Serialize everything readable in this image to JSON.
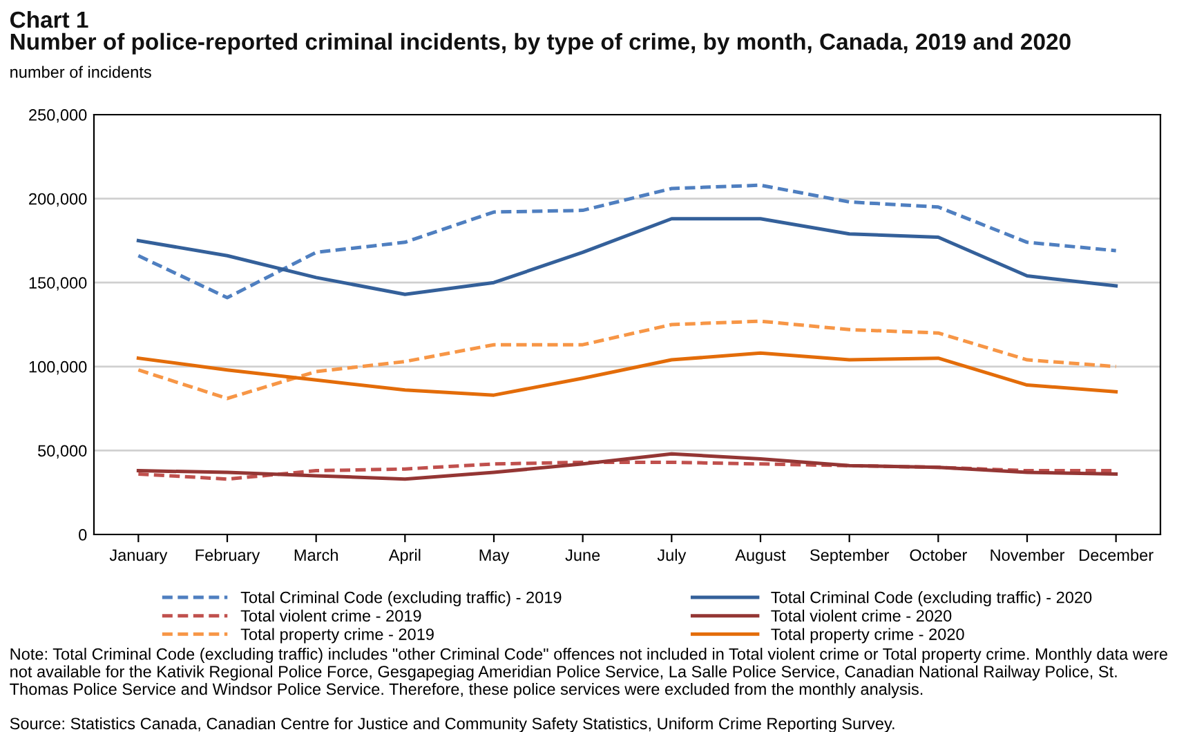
{
  "chart_data": {
    "type": "line",
    "title": "Chart 1",
    "subtitle": "Number of police-reported criminal incidents, by type of crime, by month, Canada, 2019 and 2020",
    "ylabel": "number of incidents",
    "categories": [
      "January",
      "February",
      "March",
      "April",
      "May",
      "June",
      "July",
      "August",
      "September",
      "October",
      "November",
      "December"
    ],
    "series": [
      {
        "name": "Total Criminal Code (excluding traffic) - 2019",
        "color": "#4f7fc0",
        "line_style": "dashed",
        "values": [
          166000,
          141000,
          168000,
          174000,
          192000,
          193000,
          206000,
          208000,
          198000,
          195000,
          174000,
          169000
        ]
      },
      {
        "name": "Total violent crime - 2019",
        "color": "#c0504d",
        "line_style": "dashed",
        "values": [
          36000,
          33000,
          38000,
          39000,
          42000,
          43000,
          43000,
          42000,
          41000,
          40000,
          38000,
          38000
        ]
      },
      {
        "name": "Total property crime - 2019",
        "color": "#f79646",
        "line_style": "dashed",
        "values": [
          98000,
          81000,
          97000,
          103000,
          113000,
          113000,
          125000,
          127000,
          122000,
          120000,
          104000,
          100000
        ]
      },
      {
        "name": "Total Criminal Code (excluding traffic) - 2020",
        "color": "#34609a",
        "line_style": "solid",
        "values": [
          175000,
          166000,
          153000,
          143000,
          150000,
          168000,
          188000,
          188000,
          179000,
          177000,
          154000,
          148000
        ]
      },
      {
        "name": "Total violent crime - 2020",
        "color": "#943634",
        "line_style": "solid",
        "values": [
          38000,
          37000,
          35000,
          33000,
          37000,
          42000,
          48000,
          45000,
          41000,
          40000,
          37000,
          36000
        ]
      },
      {
        "name": "Total property crime - 2020",
        "color": "#e36c09",
        "line_style": "solid",
        "values": [
          105000,
          98000,
          92000,
          86000,
          83000,
          93000,
          104000,
          108000,
          104000,
          105000,
          89000,
          85000
        ]
      }
    ],
    "ylim": [
      0,
      250000
    ],
    "yticks": [
      0,
      {
        "value": 50000,
        "label": "50,000"
      },
      {
        "value": 100000,
        "label": "100,000"
      },
      {
        "value": 150000,
        "label": "150,000"
      },
      {
        "value": 200000,
        "label": "200,000"
      },
      {
        "value": 250000,
        "label": "250,000"
      }
    ],
    "grid": "y",
    "legend": "bottom",
    "marker": "none",
    "annotations": [
      "Note: Total Criminal Code (excluding traffic) includes \"other Criminal Code\" offences not included in Total violent crime or Total property crime. Monthly data were not available for the Kativik Regional Police Force, Gesgapegiag Ameridian Police Service, La Salle Police Service, Canadian National Railway Police, St. Thomas Police Service and Windsor Police Service. Therefore, these police services were excluded from the monthly analysis.",
      "Source: Statistics Canada, Canadian Centre for Justice and Community Safety Statistics, Uniform Crime Reporting Survey."
    ]
  }
}
